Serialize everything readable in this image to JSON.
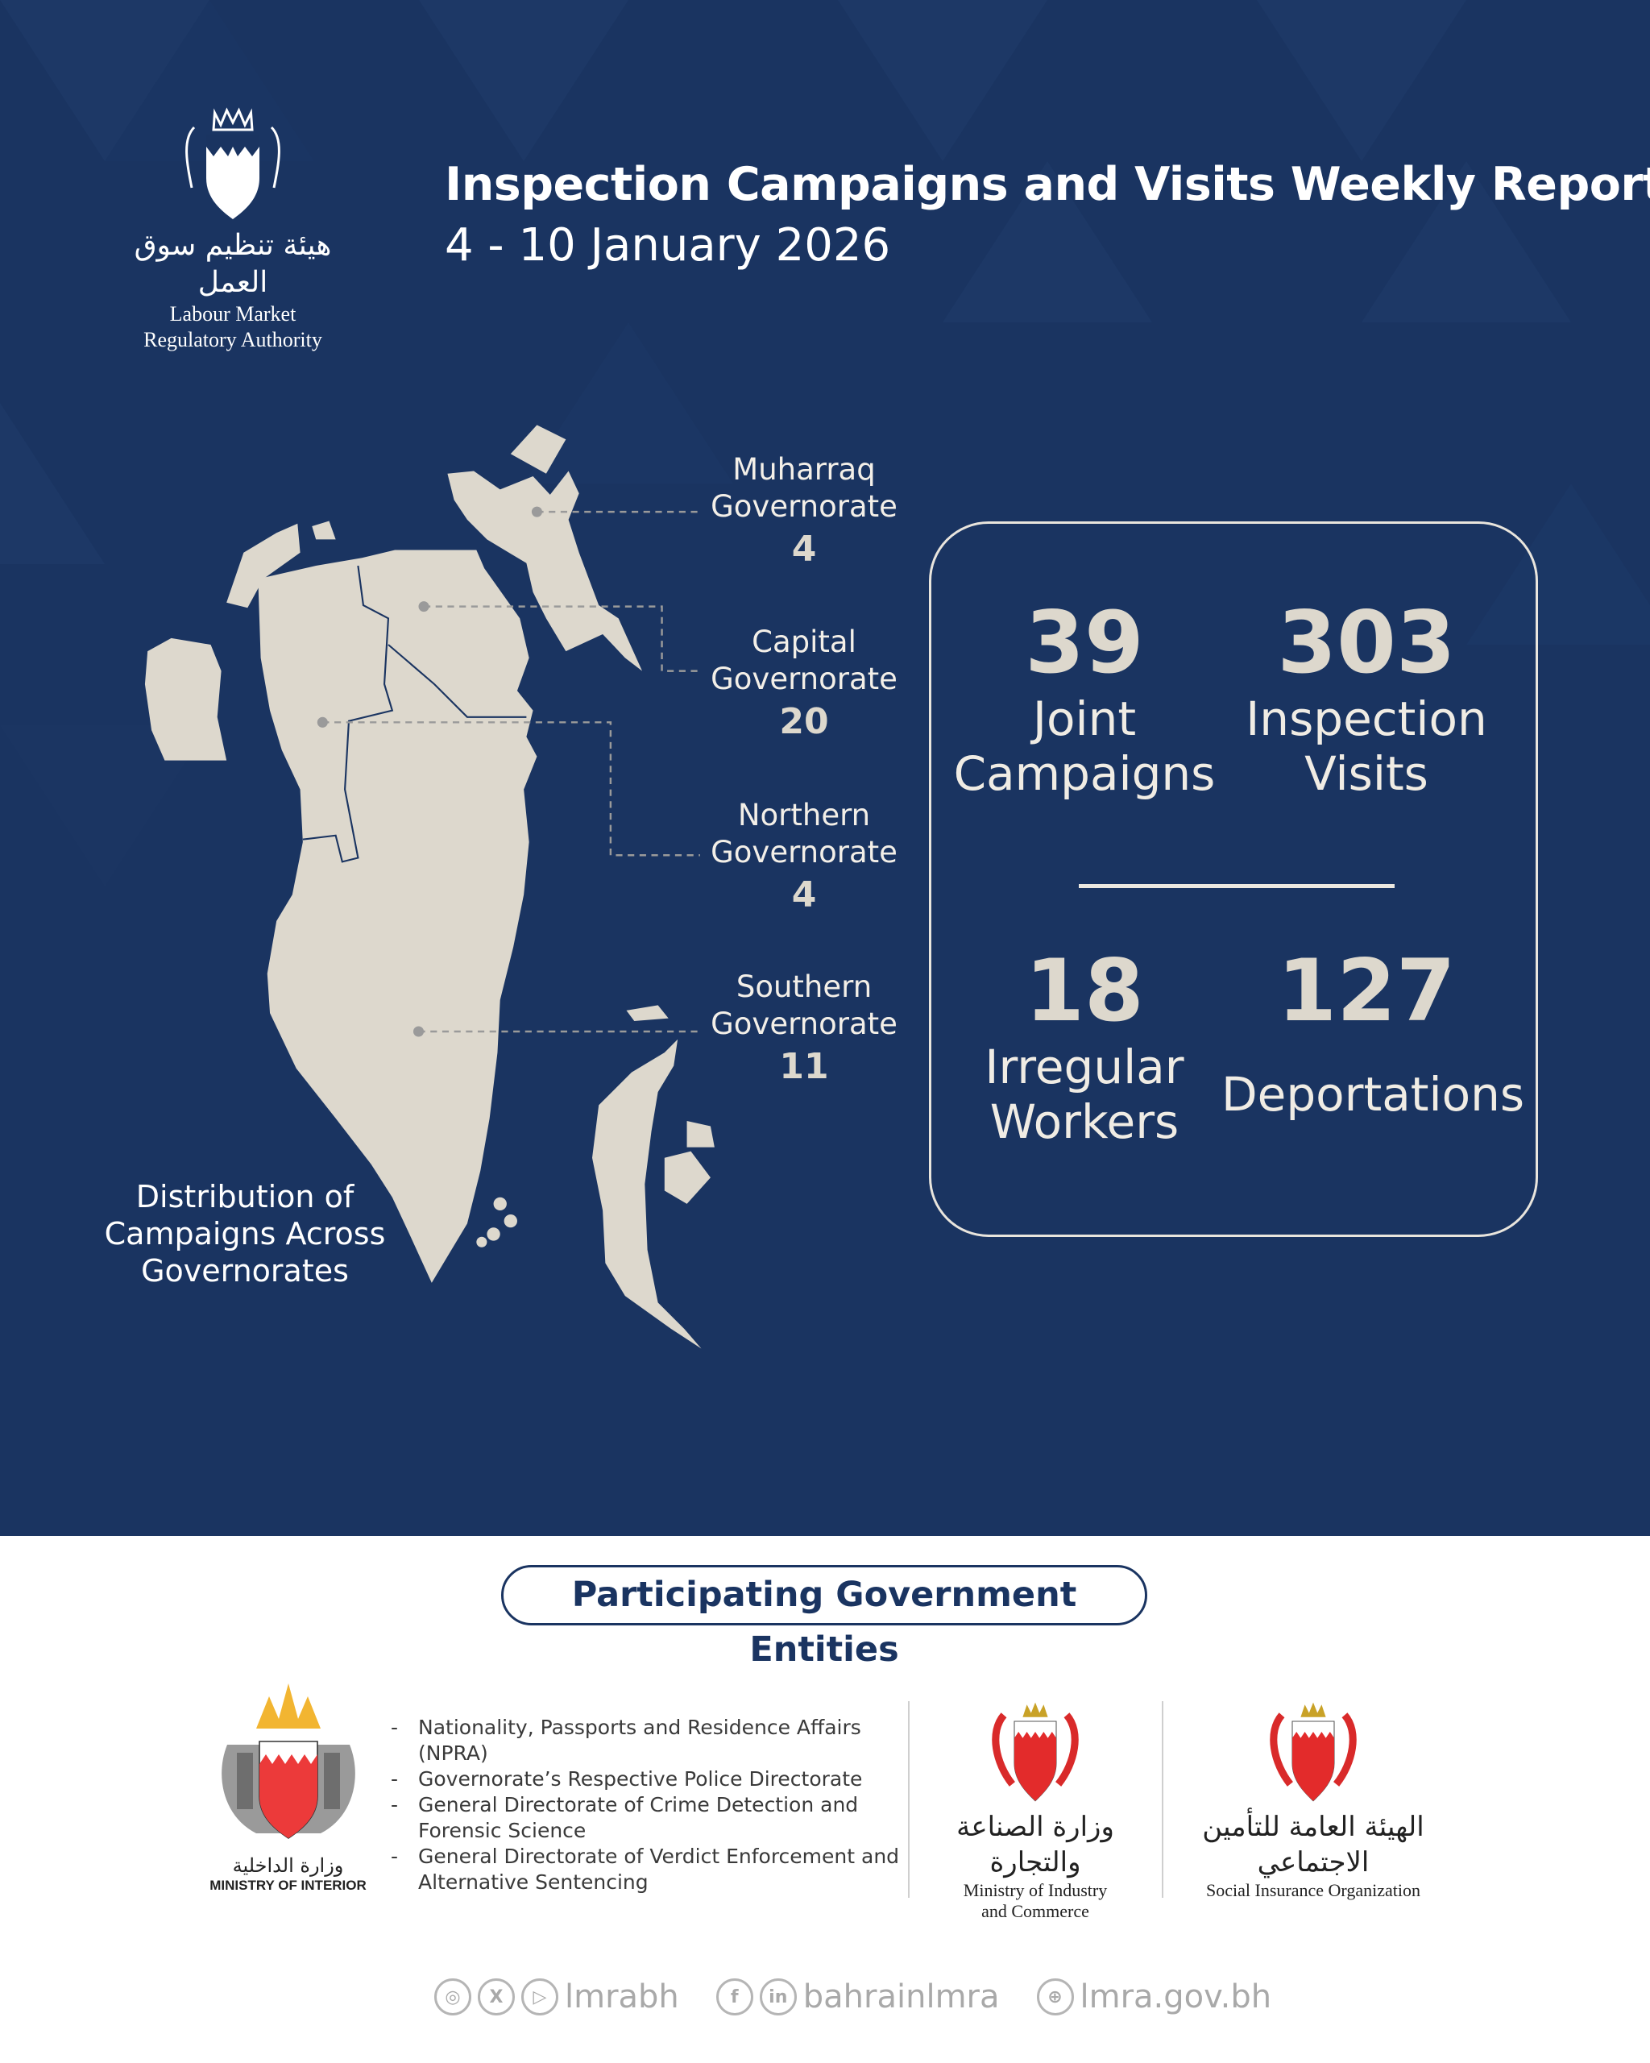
{
  "header": {
    "org_arabic": "هيئة تنظيم سوق العمل",
    "org_name_line1": "Labour Market",
    "org_name_line2": "Regulatory Authority",
    "title": "Inspection Campaigns and Visits Weekly Report",
    "date_range": "4 - 10 January 2026"
  },
  "map": {
    "caption": [
      "Distribution of",
      "Campaigns Across",
      "Governorates"
    ],
    "governorates": [
      {
        "name": [
          "Muharraq",
          "Governorate"
        ],
        "campaigns": "4"
      },
      {
        "name": [
          "Capital",
          "Governorate"
        ],
        "campaigns": "20"
      },
      {
        "name": [
          "Northern",
          "Governorate"
        ],
        "campaigns": "4"
      },
      {
        "name": [
          "Southern",
          "Governorate"
        ],
        "campaigns": "11"
      }
    ]
  },
  "stats": [
    {
      "value": "39",
      "label": [
        "Joint",
        "Campaigns"
      ]
    },
    {
      "value": "303",
      "label": [
        "Inspection",
        "Visits"
      ]
    },
    {
      "value": "18",
      "label": [
        "Irregular",
        "Workers"
      ]
    },
    {
      "value": "127",
      "label": [
        "Deportations"
      ]
    }
  ],
  "entities": {
    "heading": "Participating Government Entities",
    "moi": {
      "arabic": "وزارة الداخلية",
      "name": "MINISTRY OF INTERIOR"
    },
    "moi_departments": [
      "Nationality, Passports and Residence Affairs (NPRA)",
      "Governorate’s Respective Police Directorate",
      "General Directorate of Crime Detection and Forensic Science",
      "General Directorate of Verdict Enforcement and Alternative Sentencing"
    ],
    "moic": {
      "arabic": "وزارة الصناعة والتجارة",
      "name_line1": "Ministry of Industry",
      "name_line2": "and Commerce"
    },
    "sio": {
      "arabic": "الهيئة العامة للتأمين الاجتماعي",
      "name": "Social Insurance Organization"
    }
  },
  "footer": {
    "handle1": "lmrabh",
    "handle1_icons": [
      "instagram-icon",
      "x-icon",
      "youtube-icon"
    ],
    "handle2": "bahrainlmra",
    "handle2_icons": [
      "facebook-icon",
      "linkedin-icon"
    ],
    "website": "lmra.gov.bh",
    "website_icon": "globe-icon"
  },
  "colors": {
    "navy": "#1a3461",
    "map_land": "#ddd8cd",
    "white": "#ffffff",
    "footer_grey": "#a9a9a9",
    "bahrain_red": "#e32b2b"
  }
}
